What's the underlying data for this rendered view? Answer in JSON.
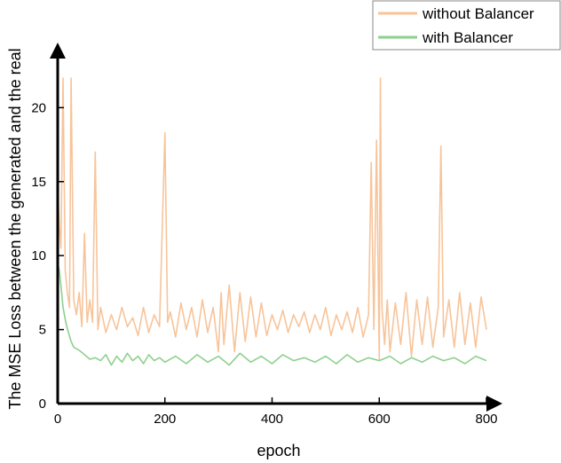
{
  "chart_data": {
    "type": "line",
    "title": "",
    "xlabel": "epoch",
    "ylabel": "The MSE Loss between the generated and the real",
    "xlim": [
      0,
      800
    ],
    "ylim": [
      0,
      22
    ],
    "xticks": [
      0,
      200,
      400,
      600,
      800
    ],
    "yticks": [
      0,
      5,
      10,
      15,
      20
    ],
    "grid": false,
    "legend": {
      "placement": "top-right",
      "frame": true
    },
    "series": [
      {
        "name": "without Balancer",
        "color": "#f7c49a",
        "x": [
          0,
          3,
          6,
          10,
          14,
          18,
          22,
          25,
          30,
          35,
          40,
          45,
          50,
          55,
          60,
          65,
          70,
          75,
          80,
          90,
          100,
          110,
          120,
          130,
          140,
          150,
          160,
          170,
          180,
          190,
          200,
          205,
          210,
          220,
          230,
          240,
          250,
          260,
          270,
          280,
          290,
          300,
          305,
          310,
          320,
          330,
          340,
          350,
          360,
          370,
          380,
          390,
          400,
          410,
          420,
          430,
          440,
          450,
          460,
          470,
          480,
          490,
          500,
          510,
          520,
          530,
          540,
          550,
          560,
          570,
          580,
          585,
          590,
          595,
          600,
          602,
          605,
          610,
          615,
          620,
          630,
          640,
          650,
          660,
          670,
          680,
          690,
          700,
          710,
          715,
          720,
          730,
          740,
          750,
          760,
          770,
          780,
          790,
          800
        ],
        "values": [
          14.5,
          12.0,
          10.5,
          22.0,
          9.0,
          7.5,
          6.5,
          22.0,
          7.0,
          6.0,
          7.5,
          5.2,
          11.5,
          5.5,
          7.0,
          5.5,
          17.0,
          5.0,
          6.5,
          4.8,
          6.0,
          5.0,
          6.5,
          5.2,
          5.8,
          4.6,
          6.5,
          4.8,
          6.0,
          5.2,
          18.3,
          5.5,
          6.2,
          4.5,
          6.8,
          5.0,
          6.5,
          4.5,
          7.0,
          4.8,
          6.5,
          3.5,
          7.5,
          4.0,
          8.0,
          3.5,
          7.5,
          4.2,
          7.2,
          4.5,
          6.8,
          4.6,
          6.0,
          5.0,
          6.3,
          4.8,
          6.0,
          5.2,
          6.2,
          4.8,
          6.0,
          5.0,
          6.5,
          4.6,
          6.0,
          5.0,
          6.2,
          4.8,
          6.5,
          4.5,
          6.0,
          16.3,
          5.0,
          17.8,
          3.0,
          22.0,
          6.5,
          4.0,
          7.0,
          3.5,
          6.8,
          4.0,
          7.5,
          3.2,
          7.0,
          4.0,
          7.2,
          3.8,
          6.5,
          17.4,
          4.5,
          7.0,
          3.8,
          7.5,
          4.0,
          6.8,
          3.8,
          7.2,
          5.0
        ]
      },
      {
        "name": "with Balancer",
        "color": "#8ed08e",
        "x": [
          0,
          3,
          6,
          10,
          15,
          20,
          25,
          30,
          40,
          50,
          60,
          70,
          80,
          90,
          100,
          110,
          120,
          130,
          140,
          150,
          160,
          170,
          180,
          190,
          200,
          220,
          240,
          260,
          280,
          300,
          320,
          340,
          360,
          380,
          400,
          420,
          440,
          460,
          480,
          500,
          520,
          540,
          560,
          580,
          600,
          620,
          640,
          660,
          680,
          700,
          720,
          740,
          760,
          780,
          800
        ],
        "values": [
          9.5,
          9.0,
          8.0,
          6.5,
          5.5,
          4.8,
          4.2,
          3.8,
          3.6,
          3.3,
          3.0,
          3.1,
          2.9,
          3.3,
          2.6,
          3.2,
          2.8,
          3.4,
          2.9,
          3.2,
          2.7,
          3.3,
          2.9,
          3.1,
          2.8,
          3.2,
          2.7,
          3.3,
          2.8,
          3.2,
          2.6,
          3.4,
          2.8,
          3.2,
          2.7,
          3.3,
          2.9,
          3.1,
          2.8,
          3.2,
          2.7,
          3.3,
          2.8,
          3.1,
          2.9,
          3.2,
          2.7,
          3.1,
          2.8,
          3.2,
          2.9,
          3.1,
          2.7,
          3.2,
          2.9
        ]
      }
    ]
  }
}
